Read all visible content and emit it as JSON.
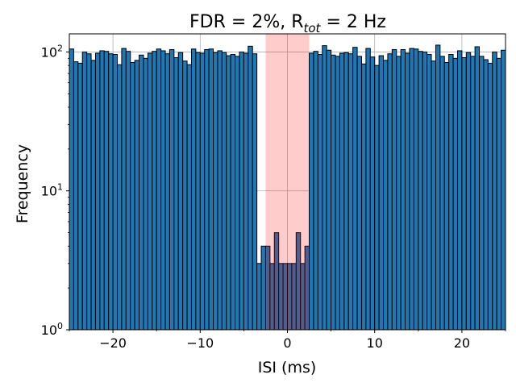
{
  "chart_data": {
    "type": "bar",
    "title": "FDR = 2%, R",
    "title_sub": "tot",
    "title_suffix": " = 2 Hz",
    "xlabel": "ISI (ms)",
    "ylabel": "Frequency",
    "xlim": [
      -25,
      25
    ],
    "ylim": [
      1,
      135
    ],
    "yscale": "log",
    "grid": true,
    "bin_width": 0.5,
    "x_ticks": [
      -20,
      -10,
      0,
      10,
      20
    ],
    "x_tick_labels": [
      "−20",
      "−10",
      "0",
      "10",
      "20"
    ],
    "y_ticks": [
      1,
      10,
      100
    ],
    "y_tick_labels": [
      "10",
      "10",
      "10"
    ],
    "y_tick_exponents": [
      "0",
      "1",
      "2"
    ],
    "refractory_period": [
      -2.5,
      2.5
    ],
    "colors": {
      "bar": "#1f77b4",
      "edge": "#000000",
      "shade": "#ff0000",
      "grid": "#b0b0b0"
    },
    "bins_left": [
      -25,
      -24.5,
      -24,
      -23.5,
      -23,
      -22.5,
      -22,
      -21.5,
      -21,
      -20.5,
      -20,
      -19.5,
      -19,
      -18.5,
      -18,
      -17.5,
      -17,
      -16.5,
      -16,
      -15.5,
      -15,
      -14.5,
      -14,
      -13.5,
      -13,
      -12.5,
      -12,
      -11.5,
      -11,
      -10.5,
      -10,
      -9.5,
      -9,
      -8.5,
      -8,
      -7.5,
      -7,
      -6.5,
      -6,
      -5.5,
      -5,
      -4.5,
      -4,
      -3.5,
      -3,
      -2.5,
      -2,
      -1.5,
      -1,
      -0.5,
      0,
      0.5,
      1,
      1.5,
      2,
      2.5,
      3,
      3.5,
      4,
      4.5,
      5,
      5.5,
      6,
      6.5,
      7,
      7.5,
      8,
      8.5,
      9,
      9.5,
      10,
      10.5,
      11,
      11.5,
      12,
      12.5,
      13,
      13.5,
      14,
      14.5,
      15,
      15.5,
      16,
      16.5,
      17,
      17.5,
      18,
      18.5,
      19,
      19.5,
      20,
      20.5,
      21,
      21.5,
      22,
      22.5,
      23,
      23.5,
      24,
      24.5
    ],
    "values": [
      105,
      85,
      83,
      100,
      97,
      87,
      98,
      102,
      101,
      97,
      96,
      81,
      106,
      101,
      84,
      87,
      95,
      90,
      98,
      101,
      105,
      102,
      97,
      104,
      91,
      99,
      86,
      81,
      105,
      99,
      98,
      104,
      105,
      99,
      102,
      99,
      94,
      96,
      93,
      100,
      98,
      110,
      97,
      3,
      4,
      4,
      3,
      5,
      3,
      3,
      3,
      3,
      5,
      3,
      4,
      98,
      101,
      96,
      111,
      103,
      95,
      93,
      98,
      99,
      97,
      108,
      93,
      82,
      106,
      92,
      80,
      94,
      87,
      97,
      104,
      93,
      104,
      98,
      106,
      105,
      101,
      100,
      96,
      86,
      112,
      93,
      84,
      96,
      90,
      102,
      91,
      99,
      93,
      109,
      93,
      88,
      83,
      100,
      90,
      103
    ]
  }
}
